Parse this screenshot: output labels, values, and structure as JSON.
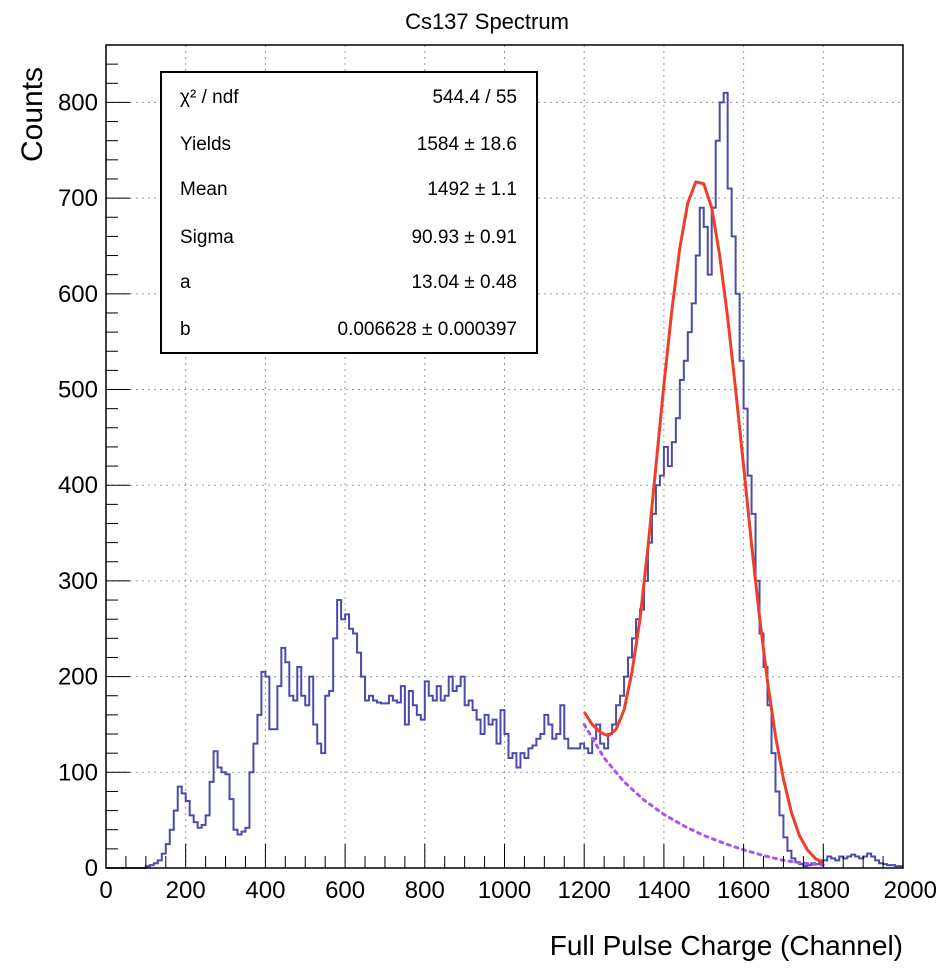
{
  "chart_data": {
    "type": "line",
    "title": "Cs137 Spectrum",
    "xlabel": "Full Pulse Charge (Channel)",
    "ylabel": "Counts",
    "xlim": [
      0,
      2000
    ],
    "ylim": [
      0,
      860
    ],
    "xticks": [
      0,
      200,
      400,
      600,
      800,
      1000,
      1200,
      1400,
      1600,
      1800,
      2000
    ],
    "yticks": [
      0,
      100,
      200,
      300,
      400,
      500,
      600,
      700,
      800
    ],
    "grid": true,
    "colors": {
      "histogram": "#4b4bab",
      "fit": "#ee3f2a",
      "background": "#a855f7"
    },
    "stats_box": {
      "position": "top-left",
      "rows": [
        {
          "label": "χ² / ndf",
          "value": "544.4 / 55"
        },
        {
          "label": "Yields",
          "value": "1584 ± 18.6"
        },
        {
          "label": "Mean",
          "value": "1492 ± 1.1"
        },
        {
          "label": "Sigma",
          "value": "90.93 ± 0.91"
        },
        {
          "label": "a",
          "value": "13.04 ± 0.48"
        },
        {
          "label": "b",
          "value": "0.006628 ± 0.000397"
        }
      ]
    },
    "series": [
      {
        "style": "step",
        "bin_width": 10,
        "x": [
          0,
          10,
          20,
          30,
          40,
          50,
          60,
          70,
          80,
          90,
          100,
          110,
          120,
          130,
          140,
          150,
          160,
          170,
          180,
          190,
          200,
          210,
          220,
          230,
          240,
          250,
          260,
          270,
          280,
          290,
          300,
          310,
          320,
          330,
          340,
          350,
          360,
          370,
          380,
          390,
          400,
          410,
          420,
          430,
          440,
          450,
          460,
          470,
          480,
          490,
          500,
          510,
          520,
          530,
          540,
          550,
          560,
          570,
          580,
          590,
          600,
          610,
          620,
          630,
          640,
          650,
          660,
          670,
          680,
          690,
          700,
          710,
          720,
          730,
          740,
          750,
          760,
          770,
          780,
          790,
          800,
          810,
          820,
          830,
          840,
          850,
          860,
          870,
          880,
          890,
          900,
          910,
          920,
          930,
          940,
          950,
          960,
          970,
          980,
          990,
          1000,
          1010,
          1020,
          1030,
          1040,
          1050,
          1060,
          1070,
          1080,
          1090,
          1100,
          1110,
          1120,
          1130,
          1140,
          1150,
          1160,
          1170,
          1180,
          1190,
          1200,
          1210,
          1220,
          1230,
          1240,
          1250,
          1260,
          1270,
          1280,
          1290,
          1300,
          1310,
          1320,
          1330,
          1340,
          1350,
          1360,
          1370,
          1380,
          1390,
          1400,
          1410,
          1420,
          1430,
          1440,
          1450,
          1460,
          1470,
          1480,
          1490,
          1500,
          1510,
          1520,
          1530,
          1540,
          1550,
          1560,
          1570,
          1580,
          1590,
          1600,
          1610,
          1620,
          1630,
          1640,
          1650,
          1660,
          1670,
          1680,
          1690,
          1700,
          1710,
          1720,
          1730,
          1740,
          1750,
          1760,
          1770,
          1780,
          1790,
          1800,
          1810,
          1820,
          1830,
          1840,
          1850,
          1860,
          1870,
          1880,
          1890,
          1900,
          1910,
          1920,
          1930,
          1940,
          1950,
          1960,
          1970,
          1980,
          1990
        ],
        "values": [
          0,
          0,
          0,
          0,
          0,
          0,
          0,
          0,
          0,
          0,
          2,
          3,
          5,
          8,
          15,
          25,
          40,
          60,
          85,
          78,
          70,
          55,
          48,
          42,
          45,
          55,
          90,
          122,
          105,
          100,
          98,
          72,
          40,
          35,
          38,
          42,
          100,
          130,
          160,
          205,
          200,
          145,
          145,
          190,
          230,
          215,
          180,
          175,
          210,
          180,
          170,
          200,
          150,
          130,
          120,
          180,
          185,
          240,
          280,
          260,
          265,
          250,
          245,
          225,
          200,
          175,
          180,
          175,
          173,
          172,
          172,
          180,
          175,
          173,
          190,
          150,
          185,
          170,
          160,
          155,
          195,
          180,
          175,
          190,
          175,
          180,
          200,
          185,
          190,
          200,
          170,
          175,
          165,
          155,
          140,
          160,
          150,
          155,
          130,
          165,
          140,
          115,
          120,
          105,
          120,
          115,
          125,
          128,
          135,
          140,
          160,
          150,
          135,
          140,
          170,
          135,
          125,
          125,
          125,
          130,
          125,
          120,
          135,
          150,
          130,
          125,
          140,
          150,
          170,
          180,
          200,
          220,
          240,
          260,
          270,
          300,
          340,
          370,
          400,
          410,
          440,
          420,
          445,
          470,
          510,
          530,
          560,
          590,
          640,
          690,
          670,
          620,
          690,
          760,
          800,
          810,
          710,
          660,
          600,
          530,
          480,
          410,
          370,
          300,
          245,
          210,
          170,
          120,
          80,
          55,
          32,
          18,
          10,
          6,
          4,
          2,
          3,
          5,
          4,
          8,
          8,
          12,
          10,
          8,
          12,
          10,
          12,
          14,
          12,
          10,
          12,
          15,
          12,
          8,
          5,
          4,
          3,
          3,
          2,
          2
        ]
      },
      {
        "style": "fit",
        "x": [
          1200,
          1220,
          1240,
          1260,
          1280,
          1300,
          1320,
          1340,
          1360,
          1380,
          1400,
          1420,
          1440,
          1460,
          1480,
          1500,
          1520,
          1540,
          1560,
          1580,
          1600,
          1620,
          1640,
          1660,
          1680,
          1700,
          1720,
          1740,
          1760,
          1780,
          1800
        ],
        "values": [
          163,
          150,
          142,
          138,
          145,
          165,
          205,
          260,
          335,
          420,
          505,
          583,
          648,
          695,
          717,
          715,
          690,
          640,
          575,
          500,
          420,
          338,
          262,
          195,
          138,
          93,
          58,
          34,
          19,
          10,
          5
        ]
      },
      {
        "style": "fit-background",
        "x": [
          1200,
          1250,
          1300,
          1350,
          1400,
          1450,
          1500,
          1550,
          1600,
          1650,
          1700,
          1750,
          1800
        ],
        "values": [
          150,
          115,
          90,
          71,
          56,
          44,
          34,
          26,
          19,
          13,
          8,
          5,
          3
        ]
      }
    ]
  }
}
